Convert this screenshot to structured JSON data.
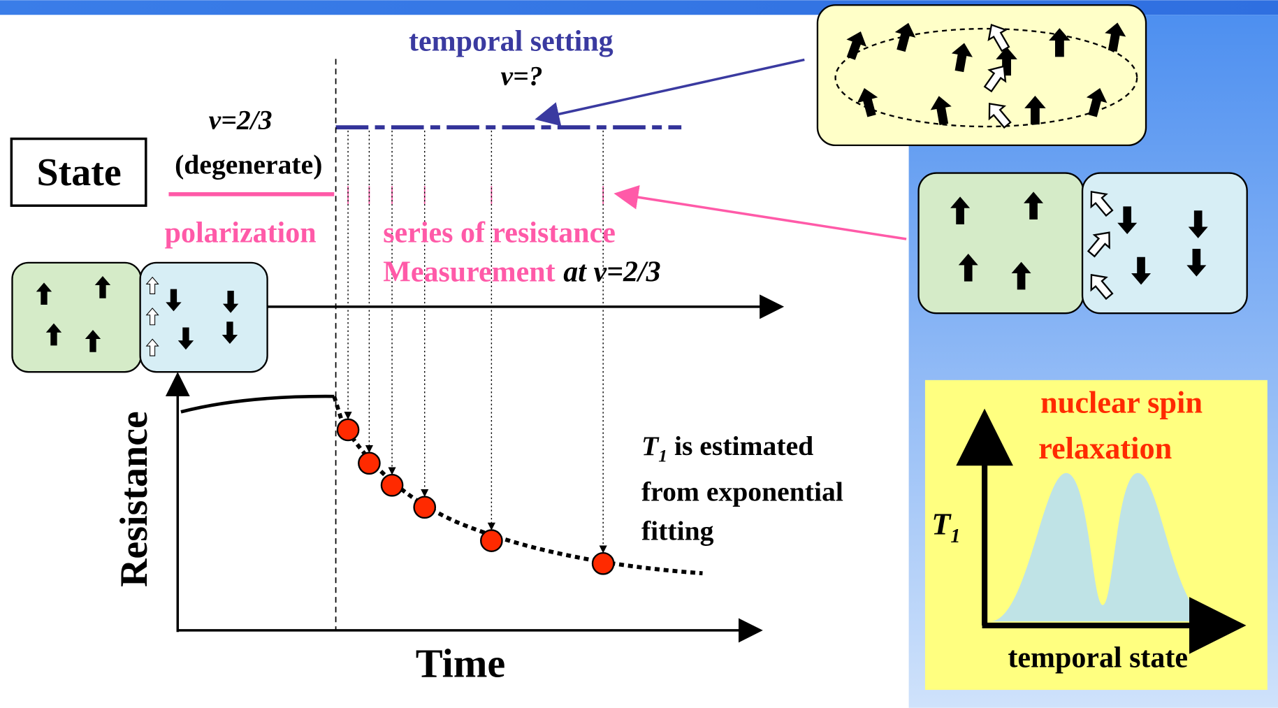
{
  "header": {
    "label": "State"
  },
  "top": {
    "title": "temporal setting",
    "nu_unknown": "ν=?"
  },
  "left": {
    "nu": "ν=2/3",
    "note": "(degenerate)",
    "polarization": "polarization"
  },
  "measurement": {
    "line1": "series of resistance",
    "line2_pink": "Measurement",
    "line2_black": "at ν=2/3"
  },
  "axes": {
    "y_label": "Resistance",
    "x_label": "Time"
  },
  "estimate": {
    "symbol": "T",
    "subscript": "1",
    "rest": " is estimated",
    "line2": "from exponential",
    "line3": "fitting"
  },
  "inset": {
    "title_line1": "nuclear spin",
    "title_line2": "relaxation",
    "y_symbol": "T",
    "y_subscript": "1",
    "x_label": "temporal state"
  }
}
